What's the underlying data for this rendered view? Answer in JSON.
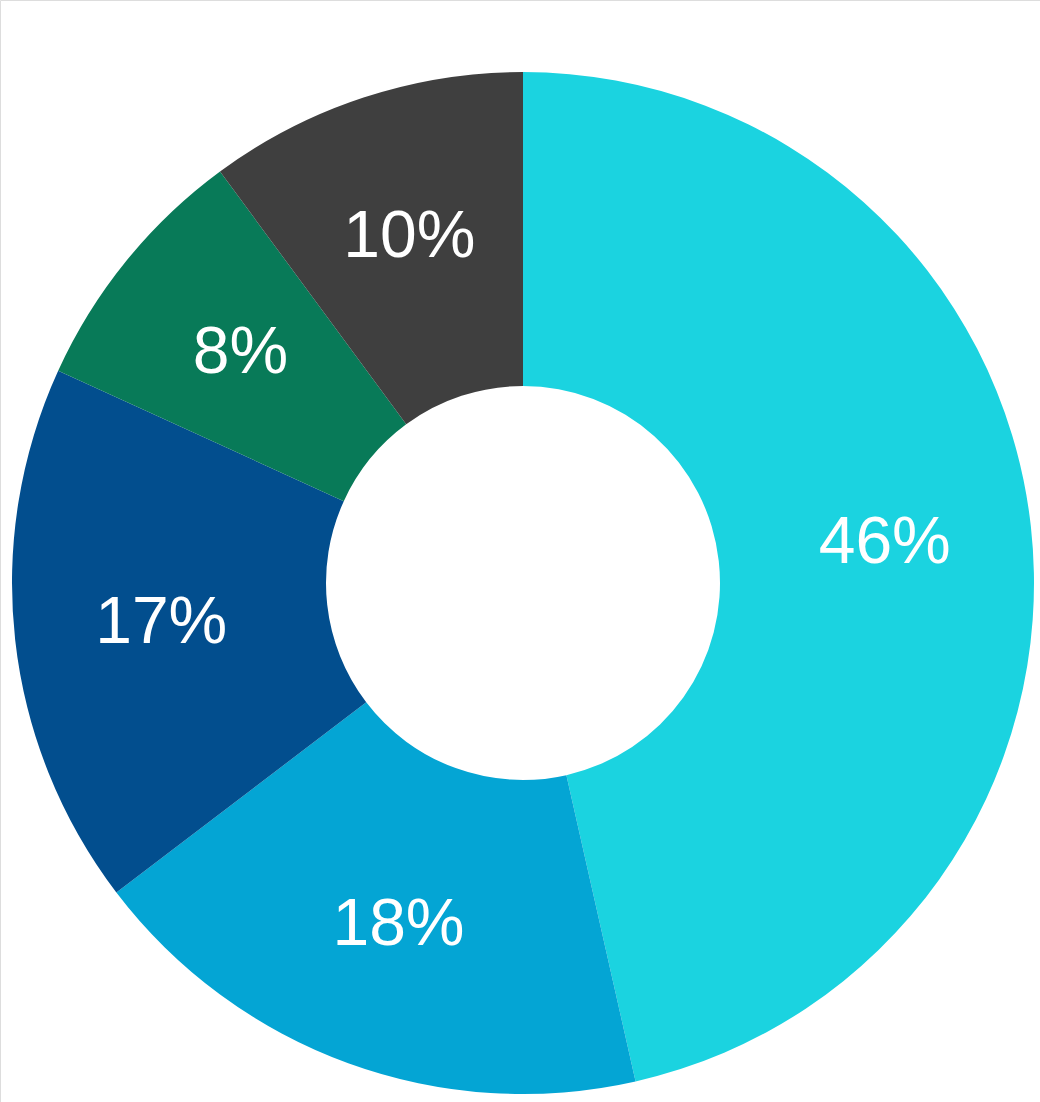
{
  "chart_data": {
    "type": "donut",
    "categories": [
      null,
      null,
      null,
      null,
      null
    ],
    "values": [
      46,
      18,
      17,
      8,
      10
    ],
    "colors": [
      "#1bd3e0",
      "#04a5d4",
      "#024e8e",
      "#087a58",
      "#3f3f3f"
    ],
    "value_labels": [
      "46%",
      "18%",
      "17%",
      "8%",
      "10%"
    ]
  }
}
